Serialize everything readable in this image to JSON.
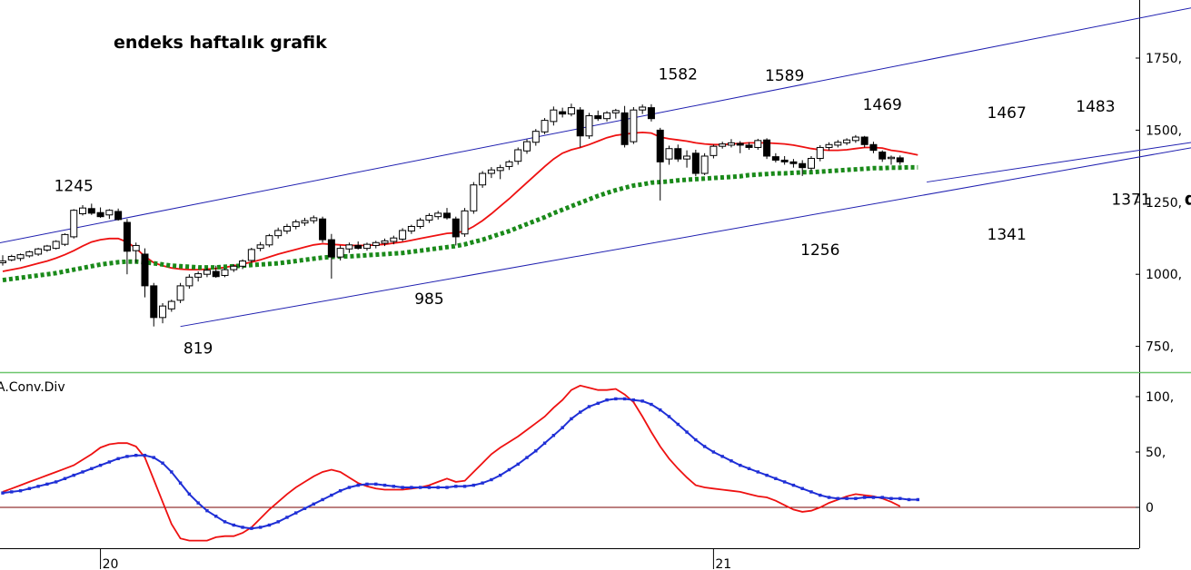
{
  "chart_data": [
    {
      "type": "candlestick",
      "title": "endeks haftalık grafik",
      "annotations": [
        {
          "text": "1245",
          "x": 8,
          "y": 1245
        },
        {
          "text": "819",
          "x": 22,
          "y": 819
        },
        {
          "text": "985",
          "x": 48,
          "y": 985
        },
        {
          "text": "1582",
          "x": 76,
          "y": 1582
        },
        {
          "text": "1589",
          "x": 88,
          "y": 1589
        },
        {
          "text": "1256",
          "x": 92,
          "y": 1256
        },
        {
          "text": "1469",
          "x": 99,
          "y": 1469
        },
        {
          "text": "1467",
          "x": 113,
          "y": 1467
        },
        {
          "text": "1341",
          "x": 113,
          "y": 1341
        },
        {
          "text": "1483",
          "x": 123,
          "y": 1483
        },
        {
          "text": "1371",
          "x": 127,
          "y": 1371
        },
        {
          "text": "destek",
          "x": 133,
          "y": 1371
        }
      ],
      "y_ticks": [
        "1750,",
        "1500,",
        "1250,",
        "1000,",
        "750,"
      ],
      "y_tick_values": [
        1750,
        1500,
        1250,
        1000,
        750
      ],
      "ylim": [
        660,
        1950
      ],
      "x_ticks": [
        "20",
        "21"
      ],
      "x_tick_index": [
        11,
        80
      ],
      "candles": [
        [
          1040,
          1066,
          1030,
          1046
        ],
        [
          1050,
          1068,
          1045,
          1062
        ],
        [
          1055,
          1072,
          1046,
          1068
        ],
        [
          1064,
          1082,
          1058,
          1078
        ],
        [
          1070,
          1092,
          1064,
          1088
        ],
        [
          1084,
          1102,
          1078,
          1098
        ],
        [
          1090,
          1118,
          1086,
          1114
        ],
        [
          1104,
          1142,
          1098,
          1138
        ],
        [
          1130,
          1226,
          1124,
          1222
        ],
        [
          1210,
          1240,
          1204,
          1230
        ],
        [
          1228,
          1245,
          1206,
          1212
        ],
        [
          1214,
          1232,
          1196,
          1200
        ],
        [
          1206,
          1226,
          1192,
          1222
        ],
        [
          1218,
          1228,
          1186,
          1190
        ],
        [
          1180,
          1192,
          1000,
          1080
        ],
        [
          1082,
          1110,
          1040,
          1100
        ],
        [
          1070,
          1090,
          920,
          960
        ],
        [
          960,
          970,
          819,
          850
        ],
        [
          850,
          900,
          830,
          890
        ],
        [
          880,
          912,
          870,
          906
        ],
        [
          910,
          970,
          900,
          960
        ],
        [
          960,
          1000,
          950,
          990
        ],
        [
          990,
          1010,
          975,
          1002
        ],
        [
          1000,
          1022,
          990,
          1014
        ],
        [
          1010,
          1030,
          988,
          992
        ],
        [
          996,
          1020,
          990,
          1016
        ],
        [
          1016,
          1035,
          1008,
          1028
        ],
        [
          1028,
          1052,
          1018,
          1046
        ],
        [
          1048,
          1092,
          1040,
          1086
        ],
        [
          1090,
          1112,
          1080,
          1102
        ],
        [
          1102,
          1140,
          1094,
          1134
        ],
        [
          1134,
          1162,
          1124,
          1152
        ],
        [
          1150,
          1175,
          1140,
          1166
        ],
        [
          1166,
          1190,
          1156,
          1182
        ],
        [
          1178,
          1196,
          1168,
          1186
        ],
        [
          1186,
          1204,
          1176,
          1196
        ],
        [
          1192,
          1200,
          1110,
          1120
        ],
        [
          1120,
          1140,
          985,
          1060
        ],
        [
          1060,
          1100,
          1048,
          1090
        ],
        [
          1088,
          1110,
          1074,
          1102
        ],
        [
          1100,
          1114,
          1086,
          1090
        ],
        [
          1090,
          1110,
          1082,
          1104
        ],
        [
          1100,
          1116,
          1090,
          1110
        ],
        [
          1108,
          1124,
          1098,
          1116
        ],
        [
          1114,
          1134,
          1104,
          1126
        ],
        [
          1122,
          1160,
          1114,
          1152
        ],
        [
          1150,
          1172,
          1140,
          1166
        ],
        [
          1166,
          1196,
          1158,
          1188
        ],
        [
          1188,
          1212,
          1178,
          1204
        ],
        [
          1200,
          1220,
          1190,
          1212
        ],
        [
          1212,
          1230,
          1190,
          1196
        ],
        [
          1192,
          1200,
          1100,
          1130
        ],
        [
          1140,
          1230,
          1130,
          1220
        ],
        [
          1220,
          1320,
          1210,
          1310
        ],
        [
          1310,
          1358,
          1300,
          1350
        ],
        [
          1350,
          1372,
          1334,
          1362
        ],
        [
          1360,
          1380,
          1330,
          1370
        ],
        [
          1374,
          1396,
          1362,
          1390
        ],
        [
          1392,
          1440,
          1380,
          1432
        ],
        [
          1428,
          1468,
          1418,
          1460
        ],
        [
          1458,
          1504,
          1446,
          1496
        ],
        [
          1494,
          1542,
          1486,
          1534
        ],
        [
          1530,
          1582,
          1516,
          1570
        ],
        [
          1564,
          1578,
          1544,
          1556
        ],
        [
          1556,
          1592,
          1548,
          1578
        ],
        [
          1570,
          1580,
          1440,
          1480
        ],
        [
          1480,
          1560,
          1470,
          1550
        ],
        [
          1550,
          1568,
          1532,
          1540
        ],
        [
          1540,
          1566,
          1530,
          1560
        ],
        [
          1560,
          1574,
          1540,
          1568
        ],
        [
          1560,
          1584,
          1440,
          1450
        ],
        [
          1460,
          1580,
          1452,
          1570
        ],
        [
          1570,
          1589,
          1556,
          1580
        ],
        [
          1578,
          1590,
          1530,
          1540
        ],
        [
          1500,
          1508,
          1256,
          1390
        ],
        [
          1400,
          1446,
          1380,
          1436
        ],
        [
          1436,
          1450,
          1390,
          1400
        ],
        [
          1400,
          1430,
          1370,
          1410
        ],
        [
          1420,
          1432,
          1340,
          1350
        ],
        [
          1350,
          1420,
          1344,
          1410
        ],
        [
          1412,
          1450,
          1402,
          1444
        ],
        [
          1444,
          1460,
          1436,
          1452
        ],
        [
          1448,
          1469,
          1440,
          1456
        ],
        [
          1454,
          1462,
          1420,
          1448
        ],
        [
          1448,
          1458,
          1432,
          1440
        ],
        [
          1440,
          1470,
          1432,
          1464
        ],
        [
          1466,
          1472,
          1400,
          1410
        ],
        [
          1408,
          1420,
          1388,
          1396
        ],
        [
          1396,
          1410,
          1380,
          1390
        ],
        [
          1390,
          1400,
          1370,
          1384
        ],
        [
          1384,
          1396,
          1341,
          1370
        ],
        [
          1368,
          1410,
          1360,
          1402
        ],
        [
          1402,
          1448,
          1392,
          1440
        ],
        [
          1440,
          1458,
          1430,
          1450
        ],
        [
          1448,
          1466,
          1440,
          1458
        ],
        [
          1456,
          1472,
          1448,
          1466
        ],
        [
          1464,
          1483,
          1456,
          1476
        ],
        [
          1476,
          1480,
          1440,
          1450
        ],
        [
          1450,
          1460,
          1420,
          1430
        ],
        [
          1424,
          1430,
          1390,
          1400
        ],
        [
          1402,
          1412,
          1380,
          1406
        ],
        [
          1404,
          1412,
          1380,
          1390
        ]
      ],
      "series": [
        {
          "kind": "line",
          "color": "#ee1111",
          "values": [
            1010,
            1016,
            1022,
            1030,
            1038,
            1046,
            1056,
            1068,
            1082,
            1098,
            1112,
            1120,
            1124,
            1124,
            1112,
            1090,
            1062,
            1040,
            1030,
            1022,
            1018,
            1016,
            1016,
            1018,
            1020,
            1024,
            1030,
            1036,
            1042,
            1050,
            1060,
            1070,
            1078,
            1086,
            1094,
            1102,
            1106,
            1104,
            1102,
            1100,
            1100,
            1100,
            1102,
            1104,
            1108,
            1112,
            1118,
            1124,
            1130,
            1136,
            1142,
            1144,
            1150,
            1166,
            1186,
            1210,
            1236,
            1262,
            1290,
            1318,
            1346,
            1374,
            1400,
            1420,
            1432,
            1440,
            1450,
            1462,
            1474,
            1482,
            1486,
            1490,
            1492,
            1490,
            1476,
            1470,
            1466,
            1462,
            1456,
            1452,
            1450,
            1450,
            1452,
            1454,
            1456,
            1456,
            1456,
            1454,
            1452,
            1448,
            1442,
            1436,
            1432,
            1430,
            1430,
            1432,
            1436,
            1440,
            1440,
            1438,
            1430,
            1426,
            1420,
            1414
          ]
        },
        {
          "kind": "dotted",
          "color": "#1a8a1a",
          "values": [
            980,
            984,
            988,
            992,
            996,
            1000,
            1004,
            1010,
            1016,
            1022,
            1028,
            1034,
            1038,
            1042,
            1044,
            1044,
            1042,
            1038,
            1034,
            1030,
            1028,
            1026,
            1024,
            1024,
            1024,
            1026,
            1028,
            1030,
            1032,
            1034,
            1036,
            1038,
            1042,
            1046,
            1050,
            1054,
            1058,
            1060,
            1062,
            1062,
            1064,
            1066,
            1068,
            1070,
            1072,
            1074,
            1078,
            1082,
            1086,
            1090,
            1094,
            1098,
            1104,
            1112,
            1120,
            1130,
            1140,
            1150,
            1162,
            1174,
            1186,
            1198,
            1212,
            1224,
            1236,
            1248,
            1260,
            1272,
            1282,
            1292,
            1300,
            1308,
            1312,
            1318,
            1320,
            1322,
            1326,
            1328,
            1330,
            1332,
            1334,
            1336,
            1338,
            1340,
            1344,
            1346,
            1348,
            1350,
            1350,
            1352,
            1354,
            1354,
            1356,
            1358,
            1360,
            1362,
            1364,
            1366,
            1368,
            1368,
            1370,
            1370,
            1371,
            1371
          ]
        }
      ],
      "channel_lines": [
        {
          "x1": -1,
          "y1": 1105,
          "x2": 138,
          "y2": 1950
        },
        {
          "x1": 20,
          "y1": 819,
          "x2": 156,
          "y2": 1560
        },
        {
          "x1": 104,
          "y1": 1320,
          "x2": 156,
          "y2": 1560
        }
      ]
    },
    {
      "type": "line",
      "title": "A.Conv.Div",
      "ylim": [
        -35,
        120
      ],
      "y_ticks": [
        "100,",
        "50,",
        "0"
      ],
      "y_tick_values": [
        100,
        50,
        0
      ],
      "zero_line": true,
      "series": [
        {
          "name": "macd",
          "color": "#ee1111",
          "values": [
            14,
            17,
            20,
            23,
            26,
            29,
            32,
            35,
            38,
            43,
            48,
            54,
            57,
            58,
            58,
            55,
            45,
            25,
            5,
            -15,
            -28,
            -30,
            -30,
            -30,
            -27,
            -26,
            -26,
            -23,
            -18,
            -10,
            -2,
            5,
            12,
            18,
            23,
            28,
            32,
            34,
            32,
            27,
            22,
            19,
            17,
            16,
            16,
            16,
            17,
            18,
            20,
            23,
            26,
            23,
            24,
            32,
            40,
            48,
            54,
            59,
            64,
            70,
            76,
            82,
            90,
            97,
            106,
            110,
            108,
            106,
            106,
            107,
            102,
            95,
            82,
            68,
            55,
            44,
            35,
            27,
            20,
            18,
            17,
            16,
            15,
            14,
            12,
            10,
            9,
            6,
            2,
            -2,
            -4,
            -3,
            0,
            4,
            7,
            10,
            12,
            11,
            10,
            8,
            5,
            1
          ]
        },
        {
          "name": "signal",
          "color": "#1f2fd6",
          "values": [
            13,
            14,
            15,
            17,
            19,
            21,
            23,
            26,
            29,
            32,
            35,
            38,
            41,
            44,
            46,
            47,
            47,
            45,
            40,
            32,
            22,
            12,
            4,
            -3,
            -8,
            -13,
            -16,
            -18,
            -19,
            -18,
            -16,
            -13,
            -9,
            -5,
            -1,
            3,
            7,
            11,
            15,
            18,
            20,
            21,
            21,
            20,
            19,
            18,
            18,
            18,
            18,
            18,
            18,
            19,
            19,
            20,
            22,
            25,
            29,
            34,
            39,
            45,
            51,
            58,
            65,
            72,
            80,
            86,
            91,
            94,
            97,
            98,
            98,
            97,
            96,
            93,
            88,
            82,
            75,
            68,
            61,
            55,
            50,
            46,
            42,
            38,
            35,
            32,
            29,
            26,
            23,
            20,
            17,
            14,
            11,
            9,
            8,
            8,
            8,
            9,
            9,
            9,
            8,
            8,
            7,
            7
          ]
        }
      ]
    }
  ]
}
